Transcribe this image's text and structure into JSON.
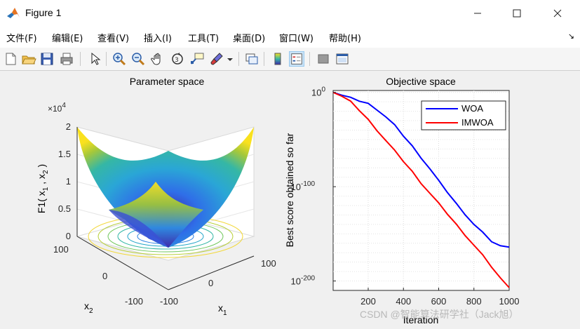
{
  "window": {
    "title": "Figure 1"
  },
  "menu": {
    "items": [
      "文件(F)",
      "编辑(E)",
      "查看(V)",
      "插入(I)",
      "工具(T)",
      "桌面(D)",
      "窗口(W)",
      "帮助(H)"
    ],
    "overflow_arrow": "↘"
  },
  "toolbar": {
    "icons": [
      "new-figure-icon",
      "open-file-icon",
      "save-icon",
      "print-icon",
      "edit-plot-arrow-icon",
      "zoom-in-icon",
      "zoom-out-icon",
      "pan-hand-icon",
      "rotate-3d-icon",
      "data-cursor-icon",
      "brush-icon",
      "brush-dropdown-icon",
      "link-plot-icon",
      "colorbar-icon",
      "legend-icon",
      "hide-plot-tools-icon",
      "show-plot-tools-icon"
    ]
  },
  "left_axes": {
    "title": "Parameter space",
    "exponent": "×10",
    "exponent_power": "4",
    "zlabel": "F1( x",
    "zticks": [
      "0",
      "0.5",
      "1",
      "1.5",
      "2"
    ],
    "x1_ticks": [
      "-100",
      "0",
      "100"
    ],
    "x2_ticks": [
      "-100",
      "0",
      "100"
    ],
    "xlabel": "x",
    "ylabel": "x",
    "colors": {
      "high": "#f9e11e",
      "mid": "#35b7a5",
      "low": "#3e26a8"
    }
  },
  "chart_data": {
    "type": "line",
    "title": "Objective space",
    "xlabel": "Iteration",
    "ylabel": "Best score obtained so far",
    "xlim": [
      1,
      1000
    ],
    "ylim_log10": [
      -210,
      2
    ],
    "yscale": "log",
    "xticks": [
      "200",
      "400",
      "600",
      "800",
      "1000"
    ],
    "yticks": [
      "10",
      "10",
      "10"
    ],
    "ytick_powers": [
      "0",
      "-100",
      "-200"
    ],
    "grid": true,
    "legend_position": "top-right",
    "series": [
      {
        "name": "WOA",
        "color": "#0000ff",
        "x": [
          1,
          50,
          100,
          150,
          200,
          250,
          300,
          350,
          400,
          450,
          500,
          550,
          600,
          650,
          700,
          750,
          800,
          850,
          900,
          950,
          1000
        ],
        "log10_y": [
          0,
          -3,
          -6,
          -9,
          -12,
          -18,
          -26,
          -35,
          -46,
          -57,
          -69,
          -81,
          -94,
          -106,
          -118,
          -129,
          -140,
          -149,
          -158,
          -163,
          -164
        ]
      },
      {
        "name": "IMWOA",
        "color": "#ff0000",
        "x": [
          1,
          50,
          100,
          150,
          200,
          250,
          300,
          350,
          400,
          450,
          500,
          550,
          600,
          650,
          700,
          750,
          800,
          850,
          900,
          950,
          1000
        ],
        "log10_y": [
          0,
          -4,
          -10,
          -19,
          -29,
          -40,
          -51,
          -62,
          -73,
          -84,
          -96,
          -107,
          -118,
          -129,
          -140,
          -151,
          -162,
          -173,
          -185,
          -197,
          -207
        ]
      }
    ]
  },
  "watermark": "CSDN @智能算法研学社（Jack旭）"
}
